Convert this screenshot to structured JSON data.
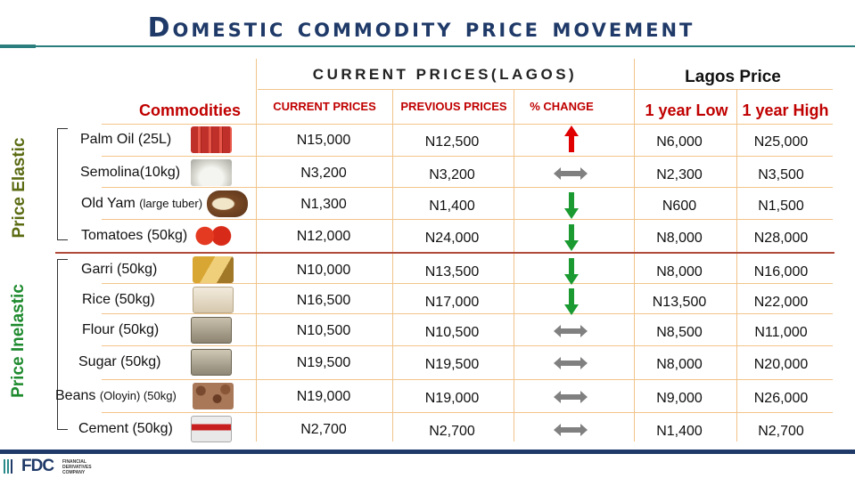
{
  "title": "Domestic commodity price movement",
  "header": {
    "group_label": "CURRENT PRICES(LAGOS)",
    "lagos_label": "Lagos Price",
    "commodities_label": "Commodities",
    "current_label": "CURRENT PRICES",
    "previous_label": "PREVIOUS PRICES",
    "change_label": "% CHANGE",
    "low_label": "1 year Low",
    "high_label": "1 year High"
  },
  "groups": {
    "elastic_label": "Price Elastic",
    "inelastic_label": "Price Inelastic"
  },
  "rows": [
    {
      "name": "Palm Oil (25L)",
      "note": "",
      "current": "N15,000",
      "previous": "N12,500",
      "change": "up",
      "low": "N6,000",
      "high": "N25,000",
      "icon": "palm-oil-image"
    },
    {
      "name": "Semolina(10kg)",
      "note": "",
      "current": "N3,200",
      "previous": "N3,200",
      "change": "flat",
      "low": "N2,300",
      "high": "N3,500",
      "icon": "semolina-image"
    },
    {
      "name": "Old Yam ",
      "note": "(large tuber)",
      "current": "N1,300",
      "previous": "N1,400",
      "change": "down",
      "low": "N600",
      "high": "N1,500",
      "icon": "yam-image"
    },
    {
      "name": "Tomatoes (50kg)",
      "note": "",
      "current": "N12,000",
      "previous": "N24,000",
      "change": "down",
      "low": "N8,000",
      "high": "N28,000",
      "icon": "tomato-image"
    },
    {
      "name": "Garri (50kg)",
      "note": "",
      "current": "N10,000",
      "previous": "N13,500",
      "change": "down",
      "low": "N8,000",
      "high": "N16,000",
      "icon": "garri-image"
    },
    {
      "name": "Rice (50kg)",
      "note": "",
      "current": "N16,500",
      "previous": "N17,000",
      "change": "down",
      "low": "N13,500",
      "high": "N22,000",
      "icon": "rice-bag-image"
    },
    {
      "name": "Flour (50kg)",
      "note": "",
      "current": "N10,500",
      "previous": "N10,500",
      "change": "flat",
      "low": "N8,500",
      "high": "N11,000",
      "icon": "flour-bag-image"
    },
    {
      "name": "Sugar (50kg)",
      "note": "",
      "current": "N19,500",
      "previous": "N19,500",
      "change": "flat",
      "low": "N8,000",
      "high": "N20,000",
      "icon": "sugar-bag-image"
    },
    {
      "name": "Beans ",
      "note": "(Oloyin) (50kg)",
      "current": "N19,000",
      "previous": "N19,000",
      "change": "flat",
      "low": "N9,000",
      "high": "N26,000",
      "icon": "beans-image"
    },
    {
      "name": "Cement (50kg)",
      "note": "",
      "current": "N2,700",
      "previous": "N2,700",
      "change": "flat",
      "low": "N1,400",
      "high": "N2,700",
      "icon": "cement-bag-image"
    }
  ],
  "footer": {
    "logo_text": "FDC",
    "logo_sub": "FINANCIAL DERIVATIVES COMPANY"
  },
  "colors": {
    "title": "#1f3a68",
    "header_red": "#c00000",
    "up_arrow": "#e00000",
    "down_arrow": "#1a9a30",
    "flat_arrow": "#808080",
    "elastic": "#5a6b12",
    "inelastic": "#1e8a2e"
  }
}
